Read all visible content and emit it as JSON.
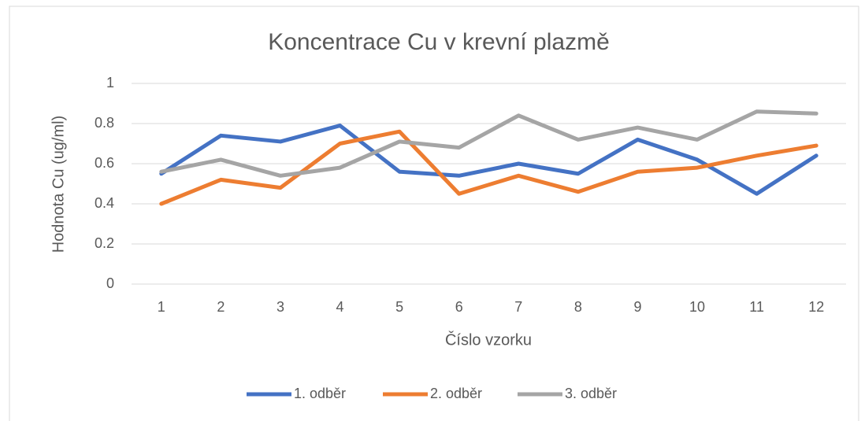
{
  "chart_data": {
    "type": "line",
    "title": "Koncentrace Cu v krevní plazmě",
    "xlabel": "Číslo vzorku",
    "ylabel": "Hodnota Cu (ug/ml)",
    "categories": [
      "1",
      "2",
      "3",
      "4",
      "5",
      "6",
      "7",
      "8",
      "9",
      "10",
      "11",
      "12"
    ],
    "series": [
      {
        "name": "1. odběr",
        "color": "#4472c4",
        "values": [
          0.55,
          0.74,
          0.71,
          0.79,
          0.56,
          0.54,
          0.6,
          0.55,
          0.72,
          0.62,
          0.45,
          0.64
        ]
      },
      {
        "name": "2. odběr",
        "color": "#ed7d31",
        "values": [
          0.4,
          0.52,
          0.48,
          0.7,
          0.76,
          0.45,
          0.54,
          0.46,
          0.56,
          0.58,
          0.64,
          0.69
        ]
      },
      {
        "name": "3. odběr",
        "color": "#a5a5a5",
        "values": [
          0.56,
          0.62,
          0.54,
          0.58,
          0.71,
          0.68,
          0.84,
          0.72,
          0.78,
          0.72,
          0.86,
          0.85
        ]
      }
    ],
    "ylim": [
      0,
      1
    ],
    "yticks": [
      0,
      0.2,
      0.4,
      0.6,
      0.8,
      1
    ],
    "grid": true,
    "legend": "bottom"
  }
}
